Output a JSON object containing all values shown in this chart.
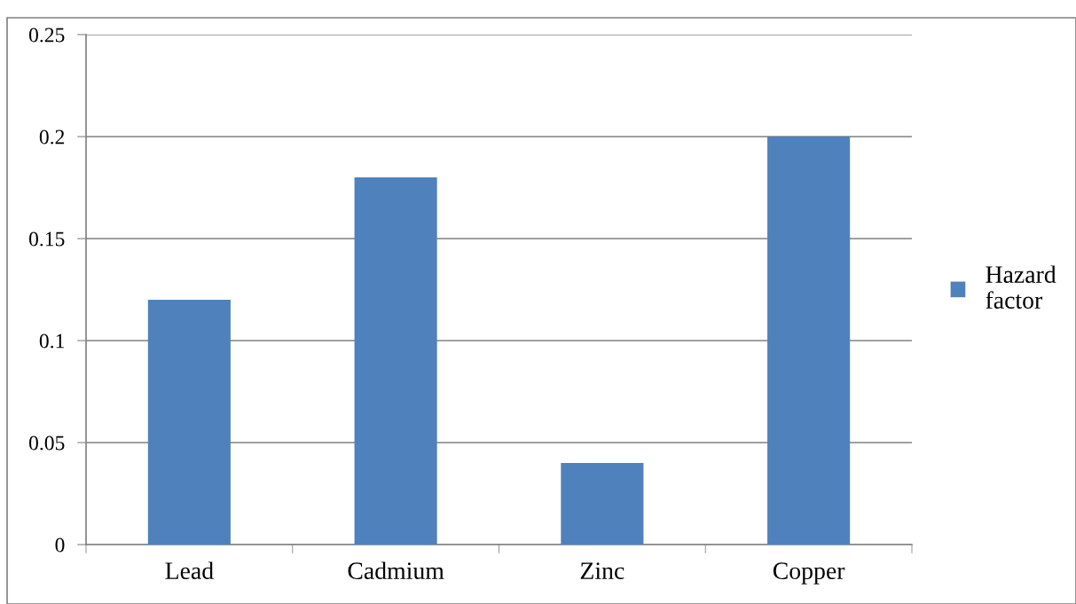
{
  "chart_data": {
    "type": "bar",
    "categories": [
      "Lead",
      "Cadmium",
      "Zinc",
      "Copper"
    ],
    "series": [
      {
        "name": "Hazard factor",
        "color": "#4f81bd",
        "values": [
          0.12,
          0.18,
          0.04,
          0.2
        ]
      }
    ],
    "ylim": [
      0,
      0.25
    ],
    "yticks": [
      0,
      0.05,
      0.1,
      0.15,
      0.2,
      0.25
    ],
    "grid": "y",
    "legend": "right"
  }
}
